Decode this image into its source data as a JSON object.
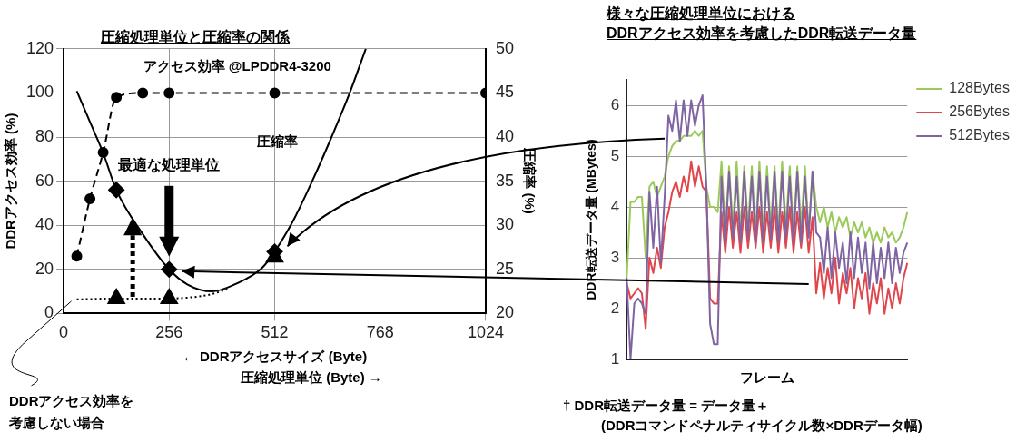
{
  "chart_data": [
    {
      "type": "line",
      "title": "圧縮処理単位と圧縮率の関係",
      "xlabel": "← DDRアクセスサイズ (Byte)",
      "ylabel": "DDRアクセス効率 (%)",
      "y2label": "圧縮率 (%)",
      "xlim": [
        0,
        1024
      ],
      "xticks": [
        0,
        256,
        512,
        768,
        1024
      ],
      "ylim": [
        0,
        120
      ],
      "yticks": [
        0,
        20,
        40,
        60,
        80,
        100,
        120
      ],
      "y2lim": [
        20,
        50
      ],
      "y2ticks": [
        20,
        25,
        30,
        35,
        40,
        45,
        50
      ],
      "grid": true,
      "legend": false,
      "annotations": [
        "最適な処理単位",
        "圧縮処理単位 (Byte) →"
      ],
      "series": [
        {
          "name": "アクセス効率 @LPDDR4-3200",
          "type": "line",
          "color": "#000000",
          "line_style": "dashed",
          "marker": "circle",
          "x": [
            32,
            64,
            96,
            128,
            192,
            256,
            512,
            1024
          ],
          "values": [
            26,
            52,
            73,
            98,
            100,
            100,
            100,
            100
          ]
        },
        {
          "name": "圧縮率",
          "type": "line",
          "axis": "y2",
          "color": "#000000",
          "line_style": "solid",
          "marker": "none",
          "x": [
            32,
            64,
            96,
            128,
            192,
            256,
            300,
            360,
            420,
            480,
            512,
            560,
            605,
            650,
            694,
            733
          ],
          "values": [
            45.2,
            41.7,
            38.2,
            34,
            29,
            25,
            23.3,
            22.5,
            23.4,
            25.1,
            27,
            30.8,
            35.2,
            40,
            45,
            50
          ]
        },
        {
          "name": "DDRアクセス効率を考慮しない場合",
          "type": "line",
          "axis": "y2",
          "color": "#000000",
          "line_style": "dotted",
          "marker": "none",
          "x": [
            32,
            128,
            256,
            300,
            350,
            402
          ],
          "values": [
            21.6,
            21.7,
            21.7,
            21.8,
            22.1,
            22.8
          ]
        },
        {
          "type": "scatter",
          "axis": "y2",
          "color": "#000000",
          "marker": "diamond",
          "x": [
            128,
            256,
            512
          ],
          "values": [
            34,
            25,
            27
          ]
        },
        {
          "type": "scatter",
          "axis": "y2",
          "color": "#000000",
          "marker": "triangle",
          "x": [
            128,
            256,
            512
          ],
          "values": [
            21.7,
            21.7,
            26.4
          ]
        }
      ]
    },
    {
      "type": "line",
      "title": "様々な圧縮処理単位における\nDDRアクセス効率を考慮したDDR転送データ量",
      "xlabel": "フレーム",
      "ylabel": "DDR転送データ量 (MBytes)",
      "ylim": [
        1,
        6.5
      ],
      "yticks": [
        1,
        2,
        3,
        4,
        5,
        6
      ],
      "grid": "y",
      "legend": "top right",
      "annotations": [
        "† DDR転送データ量 = データ量＋\n(DDRコマンドペナルティサイクル数×DDRデータ幅)"
      ],
      "categories": [
        null,
        null,
        null,
        null,
        null,
        null,
        null,
        null,
        null,
        null,
        null,
        null,
        null,
        null,
        null,
        null,
        null,
        null,
        null,
        null,
        null,
        null,
        null,
        null,
        null,
        null,
        null,
        null,
        null,
        null,
        null,
        null,
        null,
        null,
        null,
        null,
        null,
        null,
        null,
        null,
        null,
        null,
        null,
        null,
        null,
        null,
        null,
        null,
        null,
        null,
        null,
        null,
        null,
        null,
        null,
        null,
        null,
        null,
        null,
        null,
        null,
        null,
        null,
        null,
        null,
        null,
        null,
        null,
        null,
        null,
        null,
        null,
        null,
        null,
        null
      ],
      "series": [
        {
          "name": "128Bytes",
          "color": "#9bc95a",
          "values": [
            2.6,
            4.1,
            4.1,
            4.2,
            4.2,
            3.0,
            4.4,
            4.5,
            4.2,
            4.4,
            4.6,
            5.0,
            5.2,
            5.3,
            5.3,
            5.4,
            5.4,
            5.4,
            5.5,
            5.4,
            5.5,
            4.4,
            4.0,
            4.0,
            3.9,
            4.9,
            3.5,
            4.8,
            3.6,
            4.9,
            3.5,
            4.8,
            3.6,
            4.8,
            3.5,
            4.9,
            3.5,
            4.8,
            3.6,
            4.8,
            3.5,
            4.9,
            3.6,
            4.8,
            3.5,
            4.8,
            3.6,
            4.8,
            3.5,
            4.7,
            4.0,
            3.7,
            4.0,
            3.6,
            3.9,
            3.5,
            3.8,
            3.6,
            3.8,
            3.4,
            3.7,
            3.5,
            3.7,
            3.4,
            3.6,
            3.3,
            3.5,
            3.3,
            3.6,
            3.4,
            3.5,
            3.3,
            3.4,
            3.6,
            3.9
          ]
        },
        {
          "name": "256Bytes",
          "color": "#e0474c",
          "values": [
            2.5,
            2.2,
            2.3,
            2.4,
            2.3,
            1.6,
            3.0,
            2.7,
            3.2,
            2.8,
            3.6,
            3.9,
            4.3,
            4.5,
            4.2,
            4.6,
            4.3,
            4.9,
            4.4,
            4.8,
            4.4,
            4.3,
            2.2,
            2.1,
            2.1,
            3.9,
            3.1,
            4.0,
            3.2,
            3.9,
            3.1,
            4.0,
            3.2,
            3.9,
            3.2,
            4.0,
            3.1,
            3.9,
            3.2,
            4.0,
            3.1,
            3.9,
            3.2,
            4.0,
            3.1,
            3.9,
            3.2,
            4.0,
            3.1,
            3.8,
            2.3,
            2.9,
            2.2,
            2.8,
            2.3,
            3.0,
            2.1,
            2.7,
            2.3,
            2.8,
            2.0,
            2.6,
            2.2,
            2.7,
            1.9,
            2.5,
            2.1,
            2.6,
            1.9,
            2.4,
            2.0,
            2.5,
            2.1,
            2.6,
            2.9
          ]
        },
        {
          "name": "512Bytes",
          "color": "#8064a2",
          "values": [
            2.6,
            1.0,
            2.1,
            2.2,
            2.1,
            1.9,
            4.3,
            3.2,
            4.4,
            2.9,
            4.2,
            5.8,
            5.5,
            6.1,
            5.3,
            6.1,
            5.4,
            6.1,
            5.6,
            6.0,
            6.2,
            4.4,
            1.7,
            1.3,
            1.3,
            4.6,
            3.3,
            4.7,
            3.4,
            4.6,
            3.3,
            4.7,
            3.4,
            4.6,
            3.3,
            4.7,
            3.3,
            4.6,
            3.4,
            4.7,
            3.3,
            4.7,
            3.4,
            4.6,
            3.3,
            4.7,
            3.3,
            4.6,
            3.4,
            4.7,
            3.5,
            3.4,
            2.7,
            3.6,
            2.6,
            3.5,
            2.8,
            3.3,
            2.5,
            3.5,
            2.6,
            3.4,
            2.7,
            3.3,
            2.4,
            3.3,
            2.5,
            3.2,
            2.6,
            3.3,
            2.5,
            3.2,
            2.7,
            3.1,
            3.3
          ]
        }
      ]
    }
  ]
}
